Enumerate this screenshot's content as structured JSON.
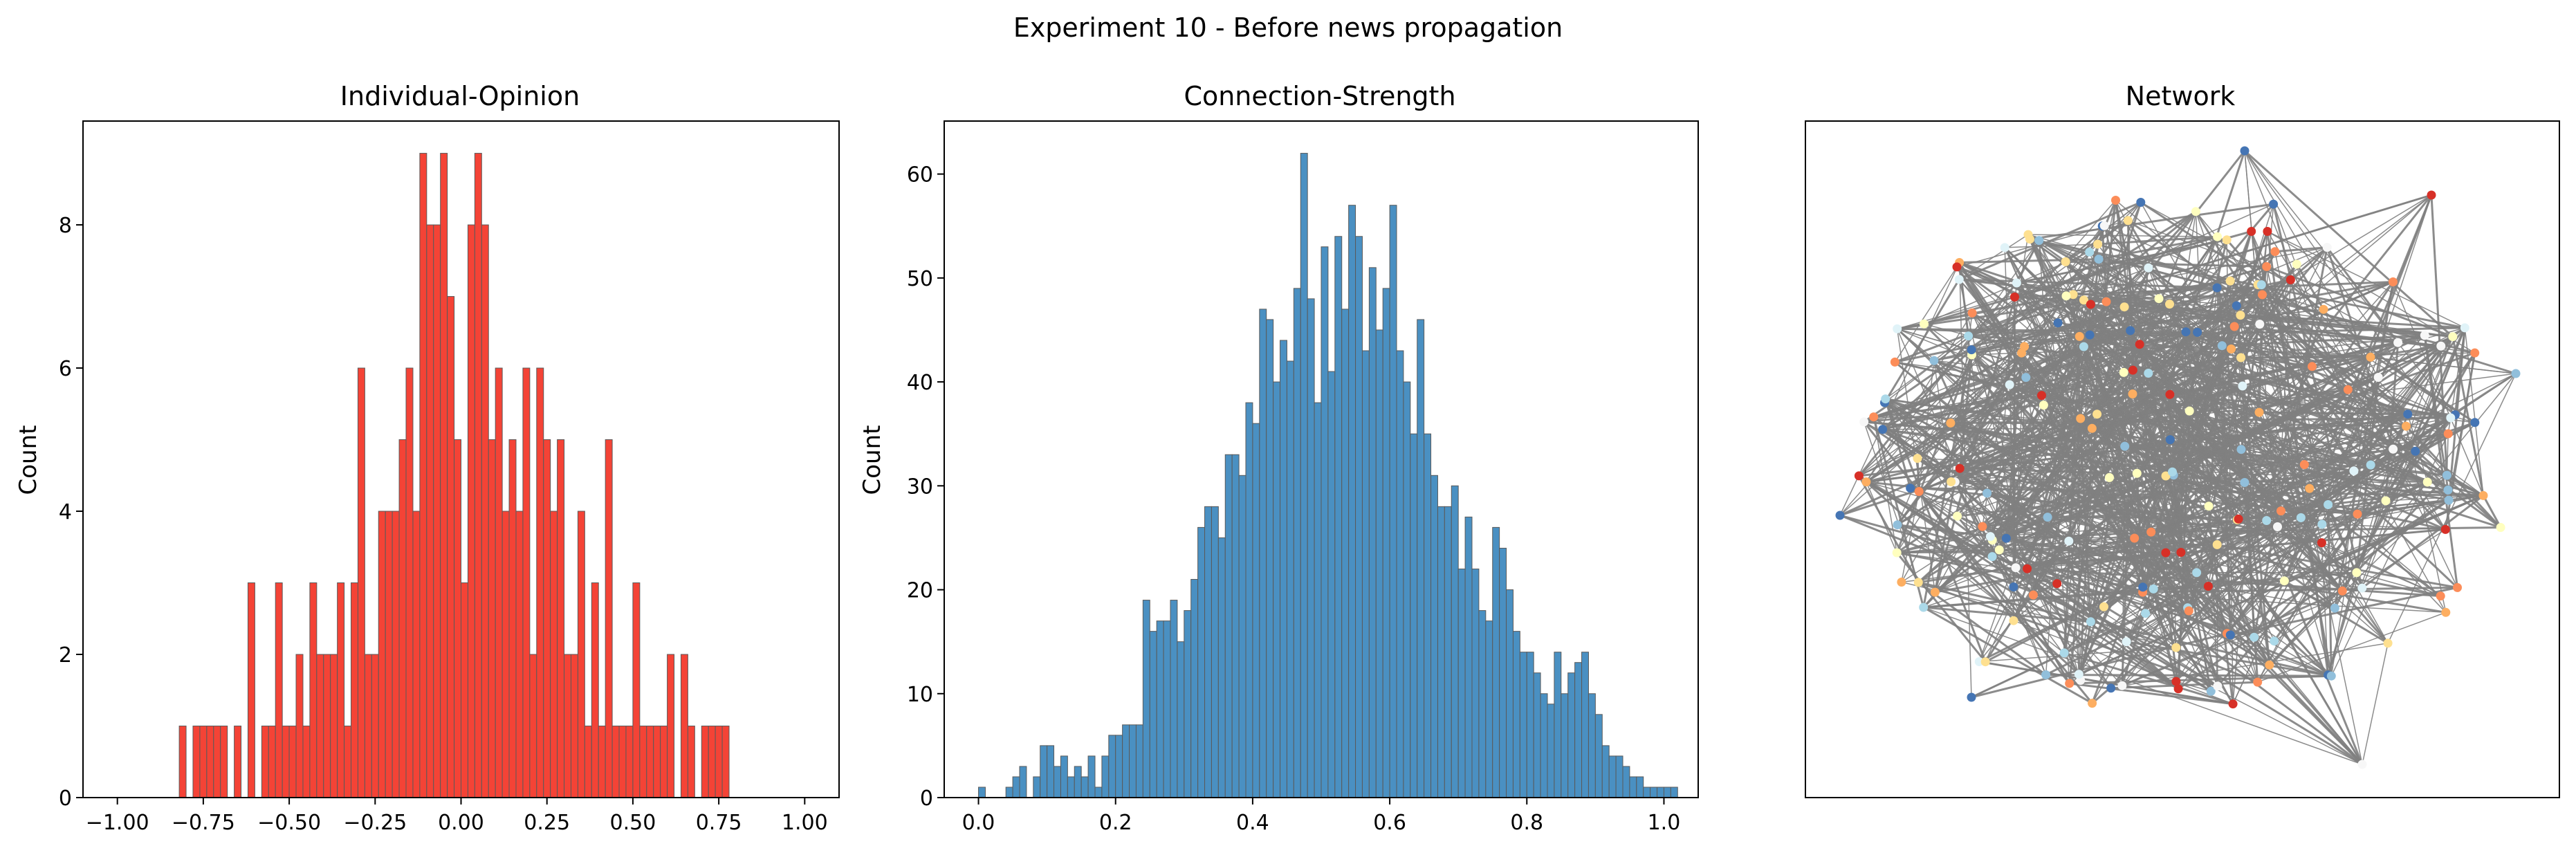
{
  "figure": {
    "title": "Experiment 10 - Before news propagation"
  },
  "colors": {
    "opinion_bar": "#f44336",
    "strength_bar": "#4a90c2",
    "edge": "#808080",
    "node_palette": [
      "#d73027",
      "#fc8d59",
      "#fee090",
      "#ffffbf",
      "#e0f3f8",
      "#91bfdb",
      "#4575b4",
      "#f7f7f7",
      "#abd9e9",
      "#fdae61"
    ]
  },
  "chart_data": [
    {
      "type": "bar",
      "title": "Individual-Opinion",
      "xlabel": "",
      "ylabel": "Count",
      "xlim": [
        -1.1,
        1.1
      ],
      "ylim": [
        0,
        9.45
      ],
      "bin_width": 0.02,
      "xticks": [
        -1.0,
        -0.75,
        -0.5,
        -0.25,
        0.0,
        0.25,
        0.5,
        0.75,
        1.0
      ],
      "xtick_labels": [
        "−1.00",
        "−0.75",
        "−0.50",
        "−0.25",
        "0.00",
        "0.25",
        "0.50",
        "0.75",
        "1.00"
      ],
      "yticks": [
        0,
        2,
        4,
        6,
        8
      ],
      "ytick_labels": [
        "0",
        "2",
        "4",
        "6",
        "8"
      ],
      "bins": [
        [
          -0.82,
          1
        ],
        [
          -0.78,
          1
        ],
        [
          -0.76,
          1
        ],
        [
          -0.74,
          1
        ],
        [
          -0.72,
          1
        ],
        [
          -0.7,
          1
        ],
        [
          -0.66,
          1
        ],
        [
          -0.62,
          3
        ],
        [
          -0.58,
          1
        ],
        [
          -0.56,
          1
        ],
        [
          -0.54,
          3
        ],
        [
          -0.52,
          1
        ],
        [
          -0.5,
          1
        ],
        [
          -0.48,
          2
        ],
        [
          -0.46,
          1
        ],
        [
          -0.44,
          3
        ],
        [
          -0.42,
          2
        ],
        [
          -0.4,
          2
        ],
        [
          -0.38,
          2
        ],
        [
          -0.36,
          3
        ],
        [
          -0.34,
          1
        ],
        [
          -0.32,
          3
        ],
        [
          -0.3,
          6
        ],
        [
          -0.28,
          2
        ],
        [
          -0.26,
          2
        ],
        [
          -0.24,
          4
        ],
        [
          -0.22,
          4
        ],
        [
          -0.2,
          4
        ],
        [
          -0.18,
          5
        ],
        [
          -0.16,
          6
        ],
        [
          -0.14,
          4
        ],
        [
          -0.12,
          9
        ],
        [
          -0.1,
          8
        ],
        [
          -0.08,
          8
        ],
        [
          -0.06,
          9
        ],
        [
          -0.04,
          7
        ],
        [
          -0.02,
          5
        ],
        [
          0.0,
          3
        ],
        [
          0.02,
          8
        ],
        [
          0.04,
          9
        ],
        [
          0.06,
          8
        ],
        [
          0.08,
          5
        ],
        [
          0.1,
          6
        ],
        [
          0.12,
          4
        ],
        [
          0.14,
          5
        ],
        [
          0.16,
          4
        ],
        [
          0.18,
          6
        ],
        [
          0.2,
          2
        ],
        [
          0.22,
          6
        ],
        [
          0.24,
          5
        ],
        [
          0.26,
          4
        ],
        [
          0.28,
          5
        ],
        [
          0.3,
          2
        ],
        [
          0.32,
          2
        ],
        [
          0.34,
          4
        ],
        [
          0.36,
          1
        ],
        [
          0.38,
          3
        ],
        [
          0.4,
          1
        ],
        [
          0.42,
          5
        ],
        [
          0.44,
          1
        ],
        [
          0.46,
          1
        ],
        [
          0.48,
          1
        ],
        [
          0.5,
          3
        ],
        [
          0.52,
          1
        ],
        [
          0.54,
          1
        ],
        [
          0.56,
          1
        ],
        [
          0.58,
          1
        ],
        [
          0.6,
          2
        ],
        [
          0.64,
          2
        ],
        [
          0.66,
          1
        ],
        [
          0.7,
          1
        ],
        [
          0.72,
          1
        ],
        [
          0.74,
          1
        ],
        [
          0.76,
          1
        ]
      ]
    },
    {
      "type": "bar",
      "title": "Connection-Strength",
      "xlabel": "",
      "ylabel": "Count",
      "xlim": [
        -0.05,
        1.05
      ],
      "ylim": [
        0,
        65.1
      ],
      "bin_width": 0.01,
      "xticks": [
        0.0,
        0.2,
        0.4,
        0.6,
        0.8,
        1.0
      ],
      "xtick_labels": [
        "0.0",
        "0.2",
        "0.4",
        "0.6",
        "0.8",
        "1.0"
      ],
      "yticks": [
        0,
        10,
        20,
        30,
        40,
        50,
        60
      ],
      "ytick_labels": [
        "0",
        "10",
        "20",
        "30",
        "40",
        "50",
        "60"
      ],
      "bins": [
        [
          0.0,
          1
        ],
        [
          0.04,
          1
        ],
        [
          0.05,
          2
        ],
        [
          0.06,
          3
        ],
        [
          0.08,
          2
        ],
        [
          0.09,
          5
        ],
        [
          0.1,
          5
        ],
        [
          0.11,
          3
        ],
        [
          0.12,
          4
        ],
        [
          0.13,
          2
        ],
        [
          0.14,
          3
        ],
        [
          0.15,
          2
        ],
        [
          0.16,
          4
        ],
        [
          0.17,
          1
        ],
        [
          0.18,
          4
        ],
        [
          0.19,
          6
        ],
        [
          0.2,
          6
        ],
        [
          0.21,
          7
        ],
        [
          0.22,
          7
        ],
        [
          0.23,
          7
        ],
        [
          0.24,
          19
        ],
        [
          0.25,
          16
        ],
        [
          0.26,
          17
        ],
        [
          0.27,
          17
        ],
        [
          0.28,
          19
        ],
        [
          0.29,
          15
        ],
        [
          0.3,
          18
        ],
        [
          0.31,
          21
        ],
        [
          0.32,
          26
        ],
        [
          0.33,
          28
        ],
        [
          0.34,
          28
        ],
        [
          0.35,
          25
        ],
        [
          0.36,
          33
        ],
        [
          0.37,
          33
        ],
        [
          0.38,
          31
        ],
        [
          0.39,
          38
        ],
        [
          0.4,
          36
        ],
        [
          0.41,
          47
        ],
        [
          0.42,
          46
        ],
        [
          0.43,
          40
        ],
        [
          0.44,
          44
        ],
        [
          0.45,
          42
        ],
        [
          0.46,
          49
        ],
        [
          0.47,
          62
        ],
        [
          0.48,
          48
        ],
        [
          0.49,
          38
        ],
        [
          0.5,
          53
        ],
        [
          0.51,
          41
        ],
        [
          0.52,
          54
        ],
        [
          0.53,
          47
        ],
        [
          0.54,
          57
        ],
        [
          0.55,
          54
        ],
        [
          0.56,
          43
        ],
        [
          0.57,
          51
        ],
        [
          0.58,
          45
        ],
        [
          0.59,
          49
        ],
        [
          0.6,
          57
        ],
        [
          0.61,
          43
        ],
        [
          0.62,
          40
        ],
        [
          0.63,
          35
        ],
        [
          0.64,
          46
        ],
        [
          0.65,
          35
        ],
        [
          0.66,
          31
        ],
        [
          0.67,
          28
        ],
        [
          0.68,
          28
        ],
        [
          0.69,
          30
        ],
        [
          0.7,
          22
        ],
        [
          0.71,
          27
        ],
        [
          0.72,
          22
        ],
        [
          0.73,
          18
        ],
        [
          0.74,
          17
        ],
        [
          0.75,
          26
        ],
        [
          0.76,
          24
        ],
        [
          0.77,
          20
        ],
        [
          0.78,
          16
        ],
        [
          0.79,
          14
        ],
        [
          0.8,
          14
        ],
        [
          0.81,
          12
        ],
        [
          0.82,
          10
        ],
        [
          0.83,
          9
        ],
        [
          0.84,
          14
        ],
        [
          0.85,
          10
        ],
        [
          0.86,
          12
        ],
        [
          0.87,
          13
        ],
        [
          0.88,
          14
        ],
        [
          0.89,
          10
        ],
        [
          0.9,
          8
        ],
        [
          0.91,
          5
        ],
        [
          0.92,
          4
        ],
        [
          0.93,
          4
        ],
        [
          0.94,
          3
        ],
        [
          0.95,
          2
        ],
        [
          0.96,
          2
        ],
        [
          0.97,
          1
        ],
        [
          0.98,
          1
        ],
        [
          0.99,
          1
        ],
        [
          1.0,
          1
        ],
        [
          1.01,
          1
        ]
      ]
    },
    {
      "type": "network",
      "title": "Network",
      "xlabel": "",
      "ylabel": ""
    }
  ]
}
